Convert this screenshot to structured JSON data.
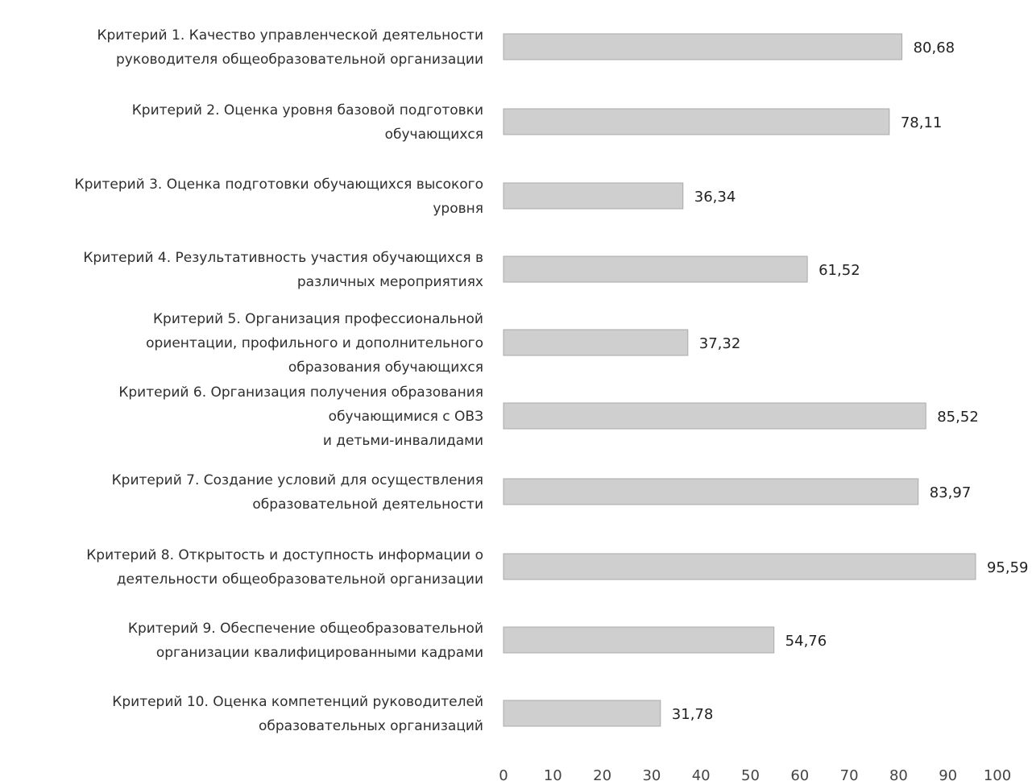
{
  "chart_data": {
    "type": "bar",
    "orientation": "horizontal",
    "categories": [
      [
        "Критерий 1. Качество управленческой деятельности",
        "руководителя общеобразовательной организации"
      ],
      [
        "Критерий 2. Оценка уровня базовой подготовки",
        "обучающихся"
      ],
      [
        "Критерий 3. Оценка подготовки обучающихся высокого",
        "уровня"
      ],
      [
        "Критерий 4. Результативность участия обучающихся в",
        "различных мероприятиях"
      ],
      [
        "Критерий 5. Организация профессиональной",
        "ориентации, профильного и дополнительного",
        "образования обучающихся"
      ],
      [
        "Критерий 6. Организация получения образования",
        "обучающимися с ОВЗ",
        "и детьми-инвалидами"
      ],
      [
        "Критерий 7. Создание условий для осуществления",
        "образовательной деятельности"
      ],
      [
        "Критерий 8. Открытость и доступность информации о",
        "деятельности общеобразовательной организации"
      ],
      [
        "Критерий 9. Обеспечение общеобразовательной",
        "организации квалифицированными кадрами"
      ],
      [
        "Критерий 10. Оценка компетенций руководителей",
        "образовательных организаций"
      ]
    ],
    "values": [
      80.68,
      78.11,
      36.34,
      61.52,
      37.32,
      85.52,
      83.97,
      95.59,
      54.76,
      31.78
    ],
    "value_labels": [
      "80,68",
      "78,11",
      "36,34",
      "61,52",
      "37,32",
      "85,52",
      "83,97",
      "95,59",
      "54,76",
      "31,78"
    ],
    "x_ticks": [
      0,
      10,
      20,
      30,
      40,
      50,
      60,
      70,
      80,
      90,
      100
    ],
    "xlim": [
      0,
      100
    ],
    "title": "",
    "xlabel": "",
    "ylabel": "",
    "grid": false,
    "legend": "none",
    "colors": {
      "bar": "#cfcfcf",
      "bar_stroke": "#a9a9a9",
      "text": "#2f2f2f",
      "value_text": "#222222",
      "tick_text": "#444444"
    }
  }
}
